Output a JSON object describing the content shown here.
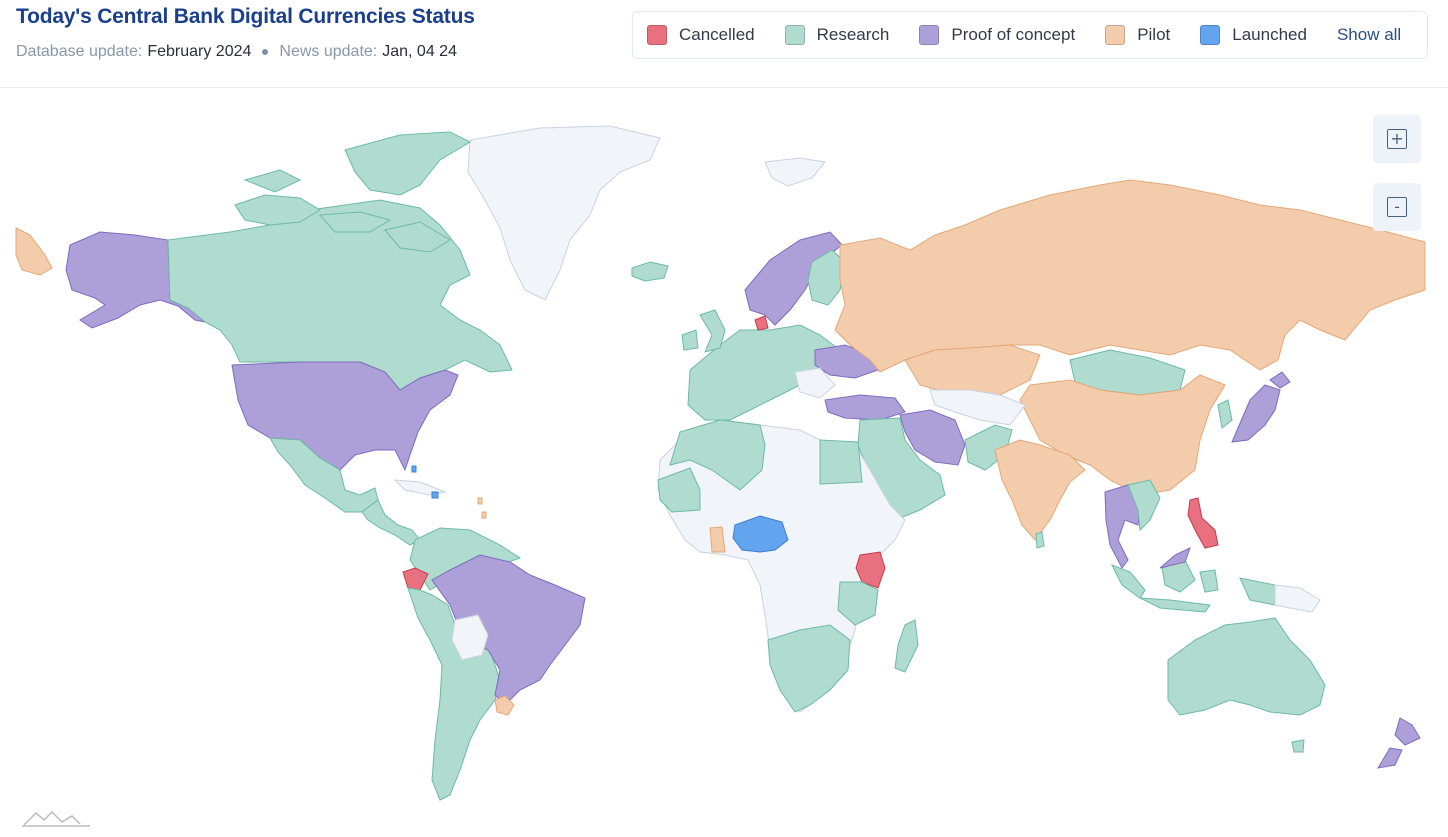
{
  "header": {
    "title": "Today's Central Bank Digital Currencies Status",
    "database_label": "Database update:",
    "database_value": "February 2024",
    "news_label": "News update:",
    "news_value": "Jan, 04 24"
  },
  "legend": {
    "items": [
      {
        "label": "Cancelled",
        "color": "#e8707f"
      },
      {
        "label": "Research",
        "color": "#b0dccf"
      },
      {
        "label": "Proof of concept",
        "color": "#ad9fd8"
      },
      {
        "label": "Pilot",
        "color": "#f2ccab"
      },
      {
        "label": "Launched",
        "color": "#63a4ee"
      }
    ],
    "show_all": "Show all"
  },
  "zoom": {
    "in": "+",
    "out": "-"
  },
  "colors": {
    "no_data": "#f1f4f9",
    "border_research": "#6cbaa6",
    "border_pilot": "#e5a877",
    "border_poc": "#7e6bbf",
    "border_cancel": "#c63b4e",
    "border_none": "#c9d3e0"
  },
  "logo_icon": "mountain-logo-icon"
}
